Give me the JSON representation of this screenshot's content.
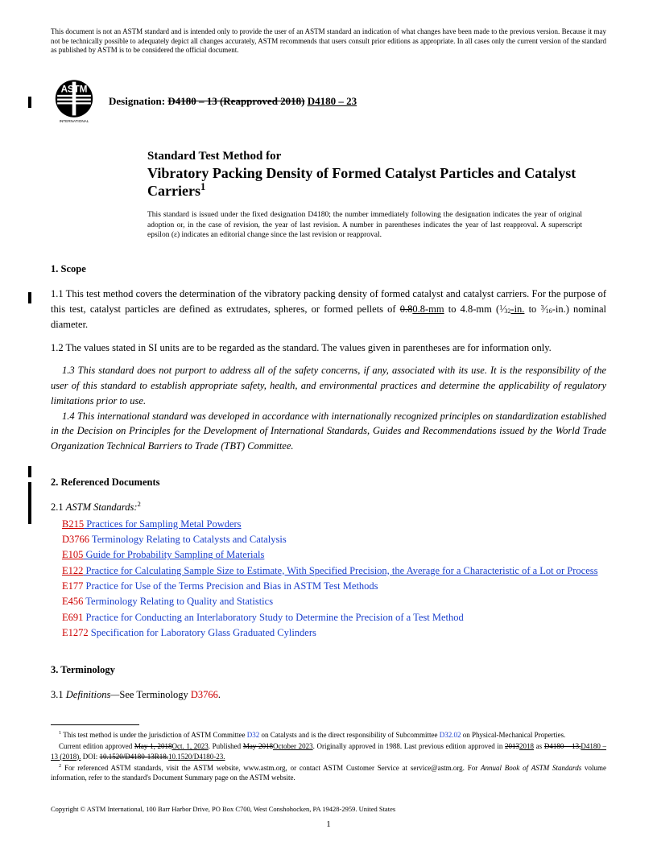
{
  "disclaimer": "This document is not an ASTM standard and is intended only to provide the user of an ASTM standard an indication of what changes have been made to the previous version. Because it may not be technically possible to adequately depict all changes accurately, ASTM recommends that users consult prior editions as appropriate. In all cases only the current version of the standard as published by ASTM is to be considered the official document.",
  "logo_sub": "INTERNATIONAL",
  "designation_label": "Designation:",
  "designation_old": "D4180 – 13 (Reapproved 2018)",
  "designation_new": "D4180 – 23",
  "title_kicker": "Standard Test Method for",
  "title_main": "Vibratory Packing Density of Formed Catalyst Particles and Catalyst Carriers",
  "issuance": "This standard is issued under the fixed designation D4180; the number immediately following the designation indicates the year of original adoption or, in the case of revision, the year of last revision. A number in parentheses indicates the year of last reapproval. A superscript epsilon (ε) indicates an editorial change since the last revision or reapproval.",
  "sec1_head": "1.  Scope",
  "sec1_1_a": "1.1  This test method covers the determination of the vibratory packing density of formed catalyst and catalyst carriers. For the purpose of this test, catalyst particles are defined as extrudates, spheres, or formed pellets of ",
  "sec1_1_old": "0.8",
  "sec1_1_new": "0.8-mm",
  "sec1_1_b": " to 4.8-mm (",
  "sec1_1_frac1_n": "1",
  "sec1_1_frac1_d": "32",
  "sec1_1_in_old": "",
  "sec1_1_in_new": "-in.",
  "sec1_1_c": " to ",
  "sec1_1_frac2_n": "3",
  "sec1_1_frac2_d": "16",
  "sec1_1_d": "-in.) nominal diameter.",
  "sec1_2": "1.2  The values stated in SI units are to be regarded as the standard. The values given in parentheses are for information only.",
  "sec1_3": "1.3  This standard does not purport to address all of the safety concerns, if any, associated with its use. It is the responsibility of the user of this standard to establish appropriate safety, health, and environmental practices and determine the applicability of regulatory limitations prior to use.",
  "sec1_4": "1.4  This international standard was developed in accordance with internationally recognized principles on standardization established in the Decision on Principles for the Development of International Standards, Guides and Recommendations issued by the World Trade Organization Technical Barriers to Trade (TBT) Committee.",
  "sec2_head": "2.  Referenced Documents",
  "sec2_1_lead": "2.1  ",
  "sec2_1_label": "ASTM Standards:",
  "refs": [
    {
      "code": "B215",
      "title": "Practices for Sampling Metal Powders",
      "ul": true
    },
    {
      "code": "D3766",
      "title": "Terminology Relating to Catalysts and Catalysis",
      "ul": false
    },
    {
      "code": "E105",
      "title": "Guide for Probability Sampling of Materials",
      "ul": true
    },
    {
      "code": "E122",
      "title": "Practice for Calculating Sample Size to Estimate, With Specified Precision, the Average for a Characteristic of a Lot or Process",
      "ul": true
    },
    {
      "code": "E177",
      "title": "Practice for Use of the Terms Precision and Bias in ASTM Test Methods",
      "ul": false
    },
    {
      "code": "E456",
      "title": "Terminology Relating to Quality and Statistics",
      "ul": false
    },
    {
      "code": "E691",
      "title": "Practice for Conducting an Interlaboratory Study to Determine the Precision of a Test Method",
      "ul": false
    },
    {
      "code": "E1272",
      "title": "Specification for Laboratory Glass Graduated Cylinders",
      "ul": false
    }
  ],
  "sec3_head": "3.  Terminology",
  "sec3_1_a": "3.1  ",
  "sec3_1_b": "Definitions—",
  "sec3_1_c": "See Terminology ",
  "sec3_1_code": "D3766",
  "sec3_1_d": ".",
  "fn1_a": " This test method is under the jurisdiction of ASTM Committee ",
  "fn1_code1": "D32",
  "fn1_b": " on Catalysts and is the direct responsibility of Subcommittee ",
  "fn1_code2": "D32.02",
  "fn1_c": " on Physical-Mechanical Properties.",
  "fn1_line2_a": "Current edition approved ",
  "fn1_line2_old1": "May 1, 2018",
  "fn1_line2_new1": "Oct. 1, 2023",
  "fn1_line2_b": ". Published ",
  "fn1_line2_old2": "May 2018",
  "fn1_line2_new2": "October 2023",
  "fn1_line2_c": ". Originally approved in 1988. Last previous edition approved in ",
  "fn1_line2_old3": "2013",
  "fn1_line2_new3": "2018",
  "fn1_line2_d": " as ",
  "fn1_line2_old4": "D4180 – 13.",
  "fn1_line2_new4": "D4180 – 13 (2018).",
  "fn1_line2_e": " DOI: ",
  "fn1_line2_old5": "10.1520/D4180-13R18.",
  "fn1_line2_new5": "10.1520/D4180-23.",
  "fn2_a": " For referenced ASTM standards, visit the ASTM website, www.astm.org, or contact ASTM Customer Service at service@astm.org. For ",
  "fn2_b": "Annual Book of ASTM Standards",
  "fn2_c": " volume information, refer to the standard's Document Summary page on the ASTM website.",
  "copyright": "Copyright © ASTM International, 100 Barr Harbor Drive, PO Box C700, West Conshohocken, PA 19428-2959. United States",
  "pagenum": "1"
}
